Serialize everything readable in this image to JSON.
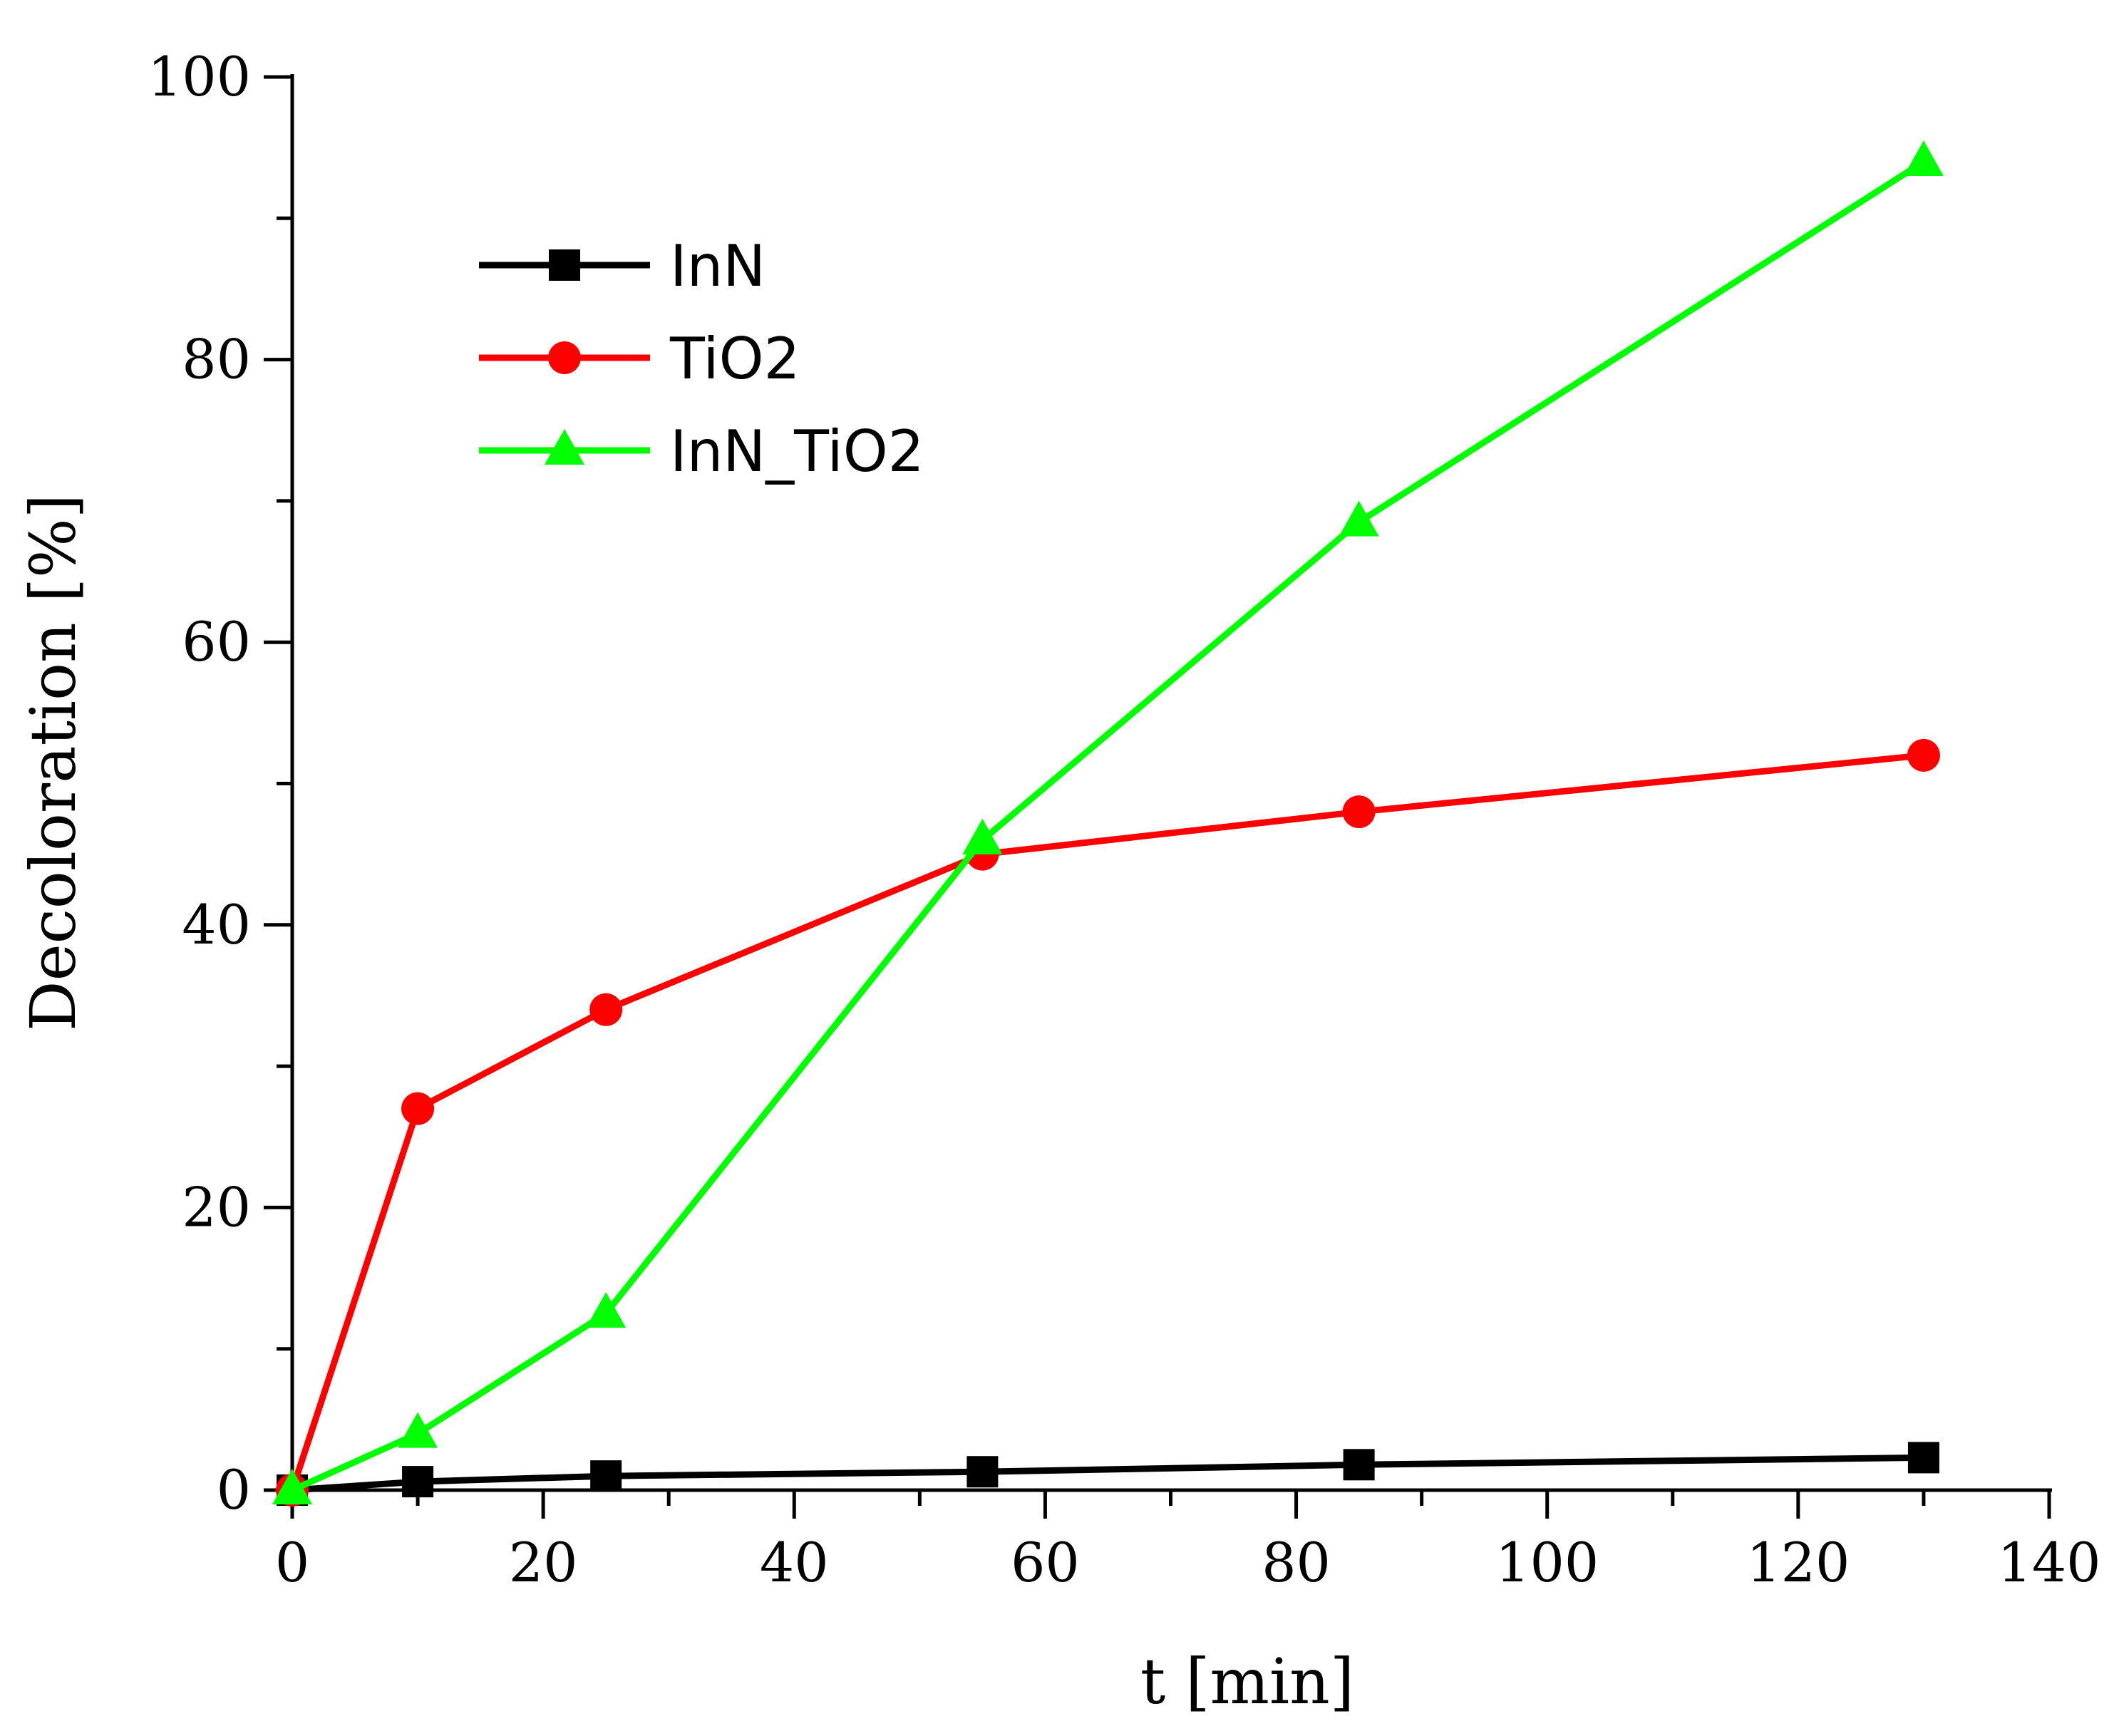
{
  "chart_data": {
    "type": "line",
    "title": "",
    "xlabel": "t [min]",
    "ylabel": "Decoloration  [%]",
    "xlim": [
      0,
      140
    ],
    "ylim": [
      0,
      100
    ],
    "xticks": [
      0,
      20,
      40,
      60,
      80,
      100,
      120,
      140
    ],
    "yticks": [
      0,
      20,
      40,
      60,
      80,
      100
    ],
    "xtick_labels": [
      "0",
      "20",
      "40",
      "60",
      "80",
      "100",
      "120",
      "140"
    ],
    "ytick_labels": [
      "0",
      "20",
      "40",
      "60",
      "80",
      "100"
    ],
    "x_minor_step": 10,
    "y_minor_step": 10,
    "grid": false,
    "legend_position": "top-left",
    "x": [
      0,
      10,
      25,
      55,
      85,
      130
    ],
    "series": [
      {
        "name": "InN",
        "color": "#000000",
        "marker": "square",
        "values": [
          0,
          0.6,
          1.0,
          1.3,
          1.8,
          2.3
        ]
      },
      {
        "name": "TiO2",
        "color": "#ff0000",
        "marker": "circle",
        "values": [
          0,
          27,
          34,
          45,
          48,
          52
        ]
      },
      {
        "name": "InN_TiO2",
        "color": "#00ff00",
        "marker": "triangle",
        "values": [
          0,
          4,
          12.5,
          46,
          68.5,
          94
        ]
      }
    ]
  }
}
